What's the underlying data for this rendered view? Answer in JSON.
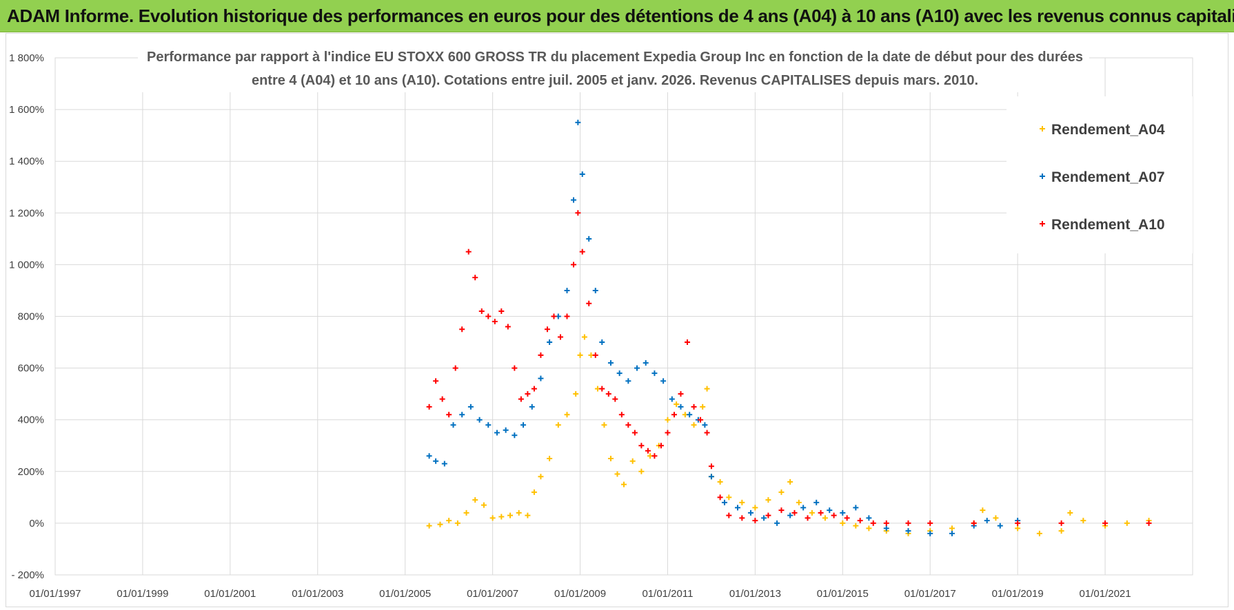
{
  "banner": {
    "title": "ADAM Informe. Evolution historique des performances en euros pour des détentions de 4 ans (A04) à 10 ans (A10) avec les revenus connus capitalisés"
  },
  "colors": {
    "banner_bg": "#92d050",
    "A04": "#ffc000",
    "A07": "#0070c0",
    "A10": "#ff0000",
    "grid": "#d9d9d9"
  },
  "chart_data": {
    "type": "scatter",
    "title_line1": "Performance par rapport à l'indice EU STOXX 600 GROSS TR  du placement Expedia Group Inc en fonction de la date de début pour des durées",
    "title_line2": "entre 4 (A04) et 10 ans (A10).  Cotations entre juil. 2005 et janv. 2026. Revenus CAPITALISES depuis mars. 2010.",
    "xlabel": "",
    "ylabel": "",
    "xlim": [
      1997.0,
      2023.0
    ],
    "ylim": [
      -200,
      1800
    ],
    "x_ticks": [
      "01/01/1997",
      "01/01/1999",
      "01/01/2001",
      "01/01/2003",
      "01/01/2005",
      "01/01/2007",
      "01/01/2009",
      "01/01/2011",
      "01/01/2013",
      "01/01/2015",
      "01/01/2017",
      "01/01/2019",
      "01/01/2021"
    ],
    "x_tick_values": [
      1997,
      1999,
      2001,
      2003,
      2005,
      2007,
      2009,
      2011,
      2013,
      2015,
      2017,
      2019,
      2021
    ],
    "y_ticks": [
      "- 200%",
      "0%",
      "200%",
      "400%",
      "600%",
      "800%",
      "1 000%",
      "1 200%",
      "1 400%",
      "1 600%",
      "1 800%"
    ],
    "y_tick_values": [
      -200,
      0,
      200,
      400,
      600,
      800,
      1000,
      1200,
      1400,
      1600,
      1800
    ],
    "grid": true,
    "legend_position": "top-right",
    "series": [
      {
        "name": "Rendement_A04",
        "color": "#ffc000",
        "marker": "+",
        "x": [
          2005.55,
          2005.8,
          2006.0,
          2006.2,
          2006.4,
          2006.6,
          2006.8,
          2007.0,
          2007.2,
          2007.4,
          2007.6,
          2007.8,
          2007.95,
          2008.1,
          2008.3,
          2008.5,
          2008.7,
          2008.9,
          2009.0,
          2009.1,
          2009.25,
          2009.4,
          2009.55,
          2009.7,
          2009.85,
          2010.0,
          2010.2,
          2010.4,
          2010.6,
          2010.8,
          2011.0,
          2011.2,
          2011.4,
          2011.6,
          2011.8,
          2011.9,
          2012.0,
          2012.2,
          2012.4,
          2012.7,
          2013.0,
          2013.3,
          2013.6,
          2013.8,
          2014.0,
          2014.3,
          2014.6,
          2015.0,
          2015.3,
          2015.6,
          2016.0,
          2016.5,
          2017.0,
          2017.5,
          2018.0,
          2018.2,
          2018.5,
          2019.0,
          2019.5,
          2020.0,
          2020.2,
          2020.5,
          2021.0,
          2021.5,
          2022.0
        ],
        "y": [
          -10,
          -5,
          10,
          0,
          40,
          90,
          70,
          20,
          25,
          30,
          40,
          30,
          120,
          180,
          250,
          380,
          420,
          500,
          650,
          720,
          650,
          520,
          380,
          250,
          190,
          150,
          240,
          200,
          260,
          300,
          400,
          460,
          420,
          380,
          450,
          520,
          180,
          160,
          100,
          80,
          60,
          90,
          120,
          160,
          80,
          40,
          20,
          0,
          -10,
          -20,
          -30,
          -40,
          -30,
          -20,
          0,
          50,
          20,
          -20,
          -40,
          -30,
          40,
          10,
          -10,
          0,
          10
        ]
      },
      {
        "name": "Rendement_A07",
        "color": "#0070c0",
        "marker": "+",
        "x": [
          2005.55,
          2005.7,
          2005.9,
          2006.1,
          2006.3,
          2006.5,
          2006.7,
          2006.9,
          2007.1,
          2007.3,
          2007.5,
          2007.7,
          2007.9,
          2008.1,
          2008.3,
          2008.5,
          2008.7,
          2008.85,
          2008.95,
          2009.05,
          2009.2,
          2009.35,
          2009.5,
          2009.7,
          2009.9,
          2010.1,
          2010.3,
          2010.5,
          2010.7,
          2010.9,
          2011.1,
          2011.3,
          2011.5,
          2011.7,
          2011.85,
          2012.0,
          2012.3,
          2012.6,
          2012.9,
          2013.2,
          2013.5,
          2013.8,
          2014.1,
          2014.4,
          2014.7,
          2015.0,
          2015.3,
          2015.6,
          2016.0,
          2016.5,
          2017.0,
          2017.5,
          2018.0,
          2018.3,
          2018.6,
          2019.0
        ],
        "y": [
          260,
          240,
          230,
          380,
          420,
          450,
          400,
          380,
          350,
          360,
          340,
          380,
          450,
          560,
          700,
          800,
          900,
          1250,
          1550,
          1350,
          1100,
          900,
          700,
          620,
          580,
          550,
          600,
          620,
          580,
          550,
          480,
          450,
          420,
          400,
          380,
          180,
          80,
          60,
          40,
          20,
          0,
          30,
          60,
          80,
          50,
          40,
          60,
          20,
          -20,
          -30,
          -40,
          -40,
          -10,
          10,
          -10,
          10
        ]
      },
      {
        "name": "Rendement_A10",
        "color": "#ff0000",
        "marker": "+",
        "x": [
          2005.55,
          2005.7,
          2005.85,
          2006.0,
          2006.15,
          2006.3,
          2006.45,
          2006.6,
          2006.75,
          2006.9,
          2007.05,
          2007.2,
          2007.35,
          2007.5,
          2007.65,
          2007.8,
          2007.95,
          2008.1,
          2008.25,
          2008.4,
          2008.55,
          2008.7,
          2008.85,
          2008.95,
          2009.05,
          2009.2,
          2009.35,
          2009.5,
          2009.65,
          2009.8,
          2009.95,
          2010.1,
          2010.25,
          2010.4,
          2010.55,
          2010.7,
          2010.85,
          2011.0,
          2011.15,
          2011.3,
          2011.45,
          2011.6,
          2011.75,
          2011.9,
          2012.0,
          2012.2,
          2012.4,
          2012.7,
          2013.0,
          2013.3,
          2013.6,
          2013.9,
          2014.2,
          2014.5,
          2014.8,
          2015.1,
          2015.4,
          2015.7,
          2016.0,
          2016.5,
          2017.0,
          2018.0,
          2019.0,
          2020.0,
          2021.0,
          2022.0
        ],
        "y": [
          450,
          550,
          480,
          420,
          600,
          750,
          1050,
          950,
          820,
          800,
          780,
          820,
          760,
          600,
          480,
          500,
          520,
          650,
          750,
          800,
          720,
          800,
          1000,
          1200,
          1050,
          850,
          650,
          520,
          500,
          480,
          420,
          380,
          350,
          300,
          280,
          260,
          300,
          350,
          420,
          500,
          700,
          450,
          400,
          350,
          220,
          100,
          30,
          20,
          10,
          30,
          50,
          40,
          20,
          40,
          30,
          20,
          10,
          0,
          0,
          0,
          0,
          0,
          0,
          0,
          0,
          0
        ]
      }
    ]
  }
}
